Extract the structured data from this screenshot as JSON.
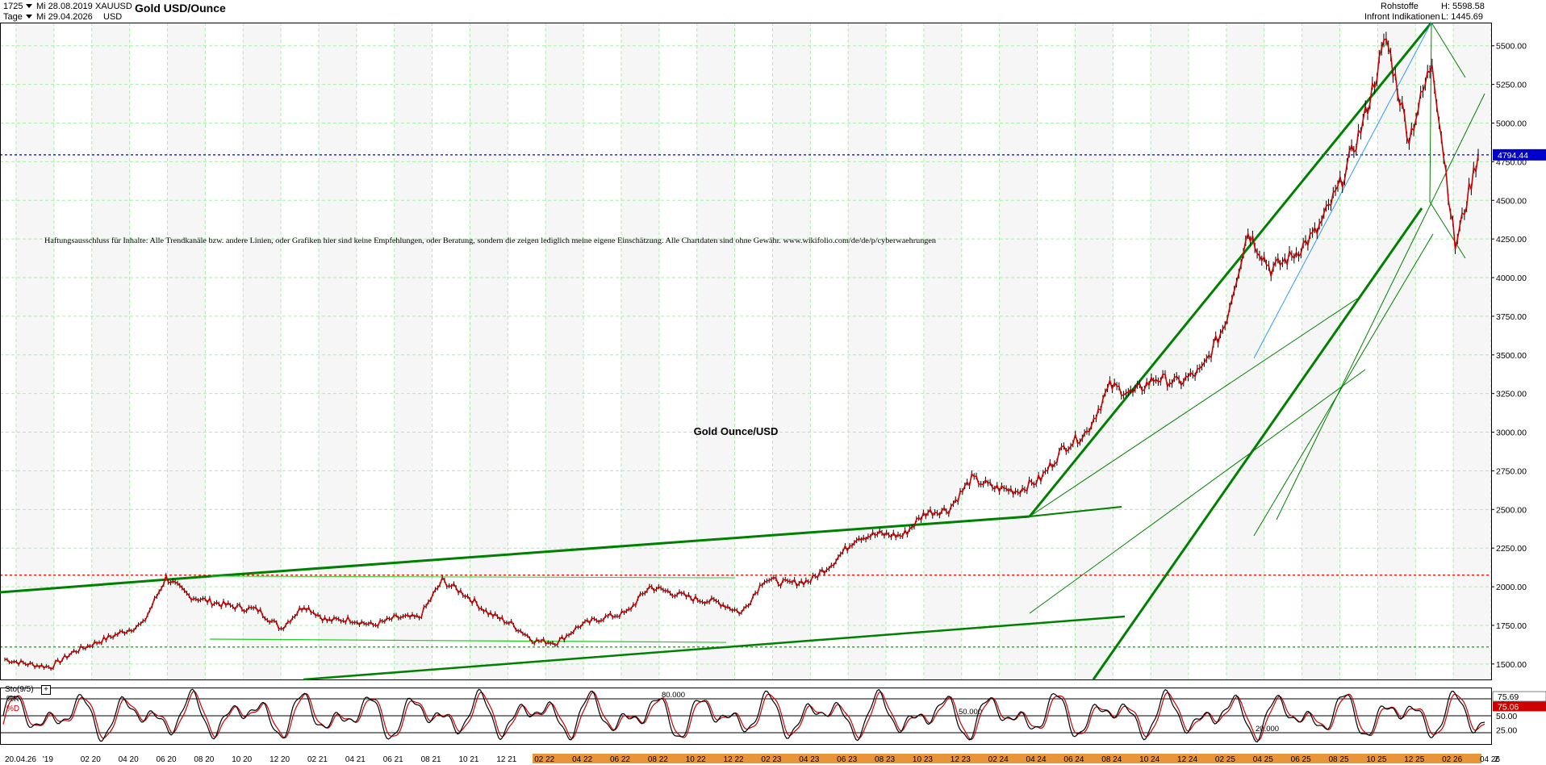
{
  "header": {
    "period_count": "1725",
    "start_date": "Mi 28.08.2019",
    "end_date": "Mi 29.04.2026",
    "unit": "Tage",
    "symbol": "XAUUSD",
    "currency": "USD",
    "title": "Gold USD/Ounce",
    "category": "Rohstoffe",
    "source": "Infront Indikationen",
    "high_label": "H: 5598.58",
    "low_label": "L: 1445.69"
  },
  "disclaimer": "Haftungsausschluss für Inhalte: Alle Trendkanäle bzw. andere Linien, oder Grafiken hier sind keine Empfehlungen, oder Beratung, sondern die zeigen lediglich meine eigene Einschätzung. Alle Chartdaten sind ohne Gewähr. www.wikifolio.com/de/de/p/cyberwaehrungen",
  "chart_data": [
    {
      "type": "line",
      "title": "Gold Ounce/USD",
      "y_axis_position": "right",
      "ylim": [
        1400,
        5650
      ],
      "y_ticks": [
        "5500.00",
        "5250.00",
        "5000.00",
        "4750.00",
        "4500.00",
        "4250.00",
        "4000.00",
        "3750.00",
        "3500.00",
        "3250.00",
        "3000.00",
        "2750.00",
        "2500.00",
        "2250.00",
        "2000.00",
        "1750.00",
        "1500.00"
      ],
      "current_price_label": "4794.44",
      "current_price": 4794.44,
      "grid": true,
      "accent_colors": {
        "price": "#cc0000",
        "trend": "#008000",
        "price_marker": "#0000cc"
      },
      "reference_lines": [
        {
          "value": 4794.44,
          "style": "dashed",
          "color": "#0000cc"
        },
        {
          "value": 2075,
          "style": "dashed",
          "color": "#dd0000"
        },
        {
          "value": 1610,
          "style": "dashed",
          "color": "#00aa00"
        }
      ],
      "x_ticks": [
        "20.04.26",
        "'19",
        "02 20",
        "04 20",
        "06 20",
        "08 20",
        "10 20",
        "12 20",
        "02 21",
        "04 21",
        "06 21",
        "08 21",
        "10 21",
        "12 21",
        "02 22",
        "04 22",
        "06 22",
        "08 22",
        "10 22",
        "12 22",
        "02 23",
        "04 23",
        "06 23",
        "08 23",
        "10 23",
        "12 23",
        "02 24",
        "04 24",
        "06 24",
        "08 24",
        "10 24",
        "12 24",
        "02 25",
        "04 25",
        "06 25",
        "08 25",
        "10 25",
        "12 25",
        "02 26",
        "04 26"
      ],
      "x": [
        "2019-08",
        "2019-10",
        "2019-12",
        "2020-02",
        "2020-03",
        "2020-04",
        "2020-06",
        "2020-08",
        "2020-09",
        "2020-10",
        "2020-12",
        "2021-01",
        "2021-03",
        "2021-05",
        "2021-06",
        "2021-08",
        "2021-09",
        "2021-11",
        "2022-01",
        "2022-03",
        "2022-04",
        "2022-06",
        "2022-08",
        "2022-09",
        "2022-10",
        "2022-11",
        "2022-12",
        "2023-02",
        "2023-04",
        "2023-05",
        "2023-06",
        "2023-08",
        "2023-10",
        "2023-11",
        "2023-12",
        "2024-02",
        "2024-03",
        "2024-04",
        "2024-05",
        "2024-06",
        "2024-08",
        "2024-09",
        "2024-10",
        "2024-11",
        "2024-12",
        "2025-01",
        "2025-02",
        "2025-03",
        "2025-04",
        "2025-05",
        "2025-06",
        "2025-07",
        "2025-08",
        "2025-09",
        "2025-10",
        "2025-10b",
        "2025-11",
        "2025-12",
        "2026-01",
        "2026-01b",
        "2026-02",
        "2026-02b",
        "2026-03",
        "2026-03b",
        "2026-04"
      ],
      "series": [
        {
          "values": [
            1530,
            1500,
            1480,
            1580,
            1640,
            1700,
            1760,
            2060,
            1940,
            1900,
            1870,
            1850,
            1730,
            1880,
            1780,
            1790,
            1750,
            1800,
            1800,
            2040,
            1950,
            1830,
            1760,
            1650,
            1640,
            1750,
            1800,
            1830,
            2000,
            1960,
            1920,
            1900,
            1830,
            2050,
            2020,
            2040,
            2160,
            2320,
            2340,
            2330,
            2480,
            2500,
            2700,
            2640,
            2620,
            2700,
            2900,
            3000,
            3300,
            3250,
            3350,
            3320,
            3400,
            3700,
            4300,
            4050,
            4150,
            4300,
            4600,
            5000,
            5550,
            4900,
            5400,
            4200,
            4794.44
          ]
        }
      ]
    },
    {
      "type": "line",
      "title": "Sto(9/5)",
      "legend": [
        "%K",
        "%D"
      ],
      "ylim": [
        0,
        100
      ],
      "y_ticks": [
        "75.00",
        "50.00",
        "25.00"
      ],
      "reference_lines": [
        80,
        50,
        20
      ],
      "reference_labels": [
        "80.000",
        "50.000",
        "20.000"
      ],
      "latest_labels": [
        "75.69",
        "75.06"
      ],
      "latest_values": [
        75.69,
        75.06
      ]
    }
  ]
}
